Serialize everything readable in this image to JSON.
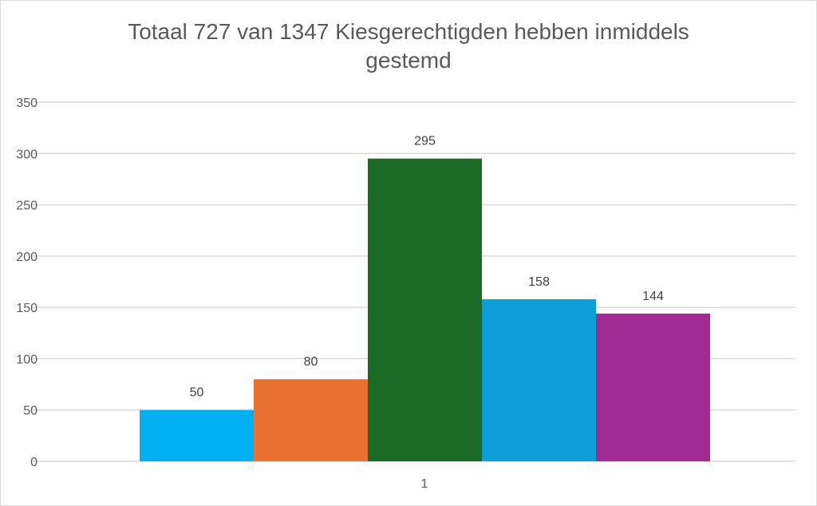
{
  "chart_data": {
    "type": "bar",
    "title_lines": [
      "Totaal 727 van 1347 Kiesgerechtigden hebben inmiddels",
      "gestemd"
    ],
    "categories": [
      "1"
    ],
    "series": [
      {
        "values": [
          50
        ],
        "color": "#00B0F0"
      },
      {
        "values": [
          80
        ],
        "color": "#E97132"
      },
      {
        "values": [
          295
        ],
        "color": "#1B6A26"
      },
      {
        "values": [
          158
        ],
        "color": "#0F9ED5"
      },
      {
        "values": [
          144
        ],
        "color": "#A02B93"
      }
    ],
    "ylim": [
      0,
      350
    ],
    "yticks": [
      "0",
      "50",
      "100",
      "150",
      "200",
      "250",
      "300",
      "350"
    ],
    "grid": true,
    "data_labels": true,
    "legend": "none"
  }
}
